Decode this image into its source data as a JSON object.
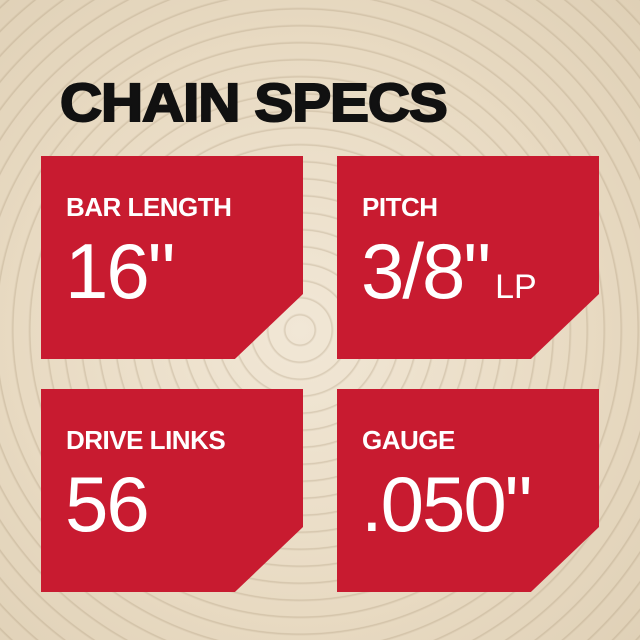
{
  "title": "CHAIN SPECS",
  "colors": {
    "card": "#c81b30",
    "background": "#e8dac2",
    "title": "#111111"
  },
  "specs": [
    {
      "label": "BAR LENGTH",
      "value": "16\""
    },
    {
      "label": "PITCH",
      "value": "3/8\"",
      "unit": "LP"
    },
    {
      "label": "DRIVE LINKS",
      "value": "56"
    },
    {
      "label": "GAUGE",
      "value": ".050\""
    }
  ]
}
